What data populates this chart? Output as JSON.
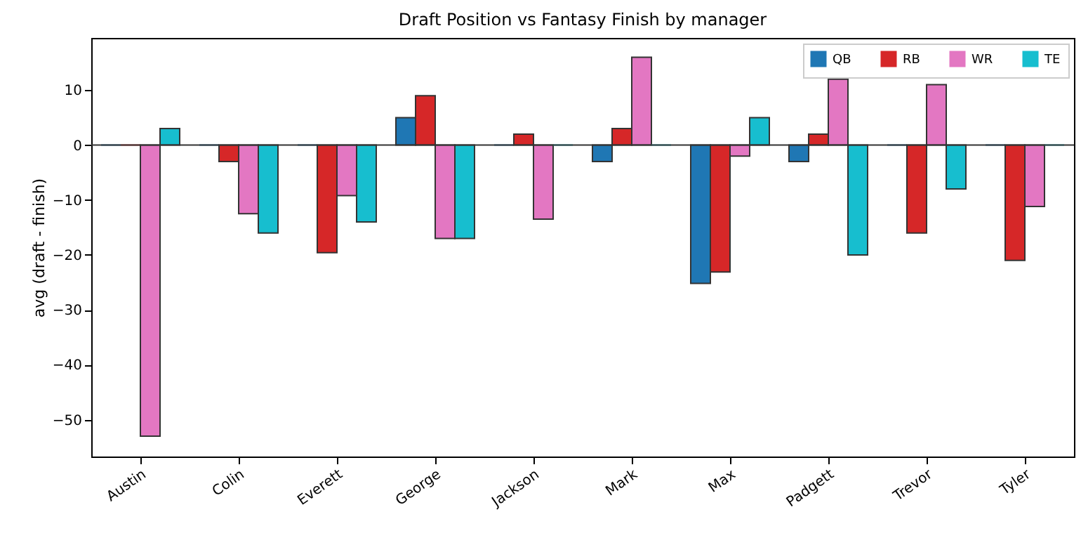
{
  "chart_data": {
    "type": "bar",
    "title": "Draft Position vs Fantasy Finish by manager",
    "ylabel": "avg (draft - finish)",
    "categories": [
      "Austin",
      "Colin",
      "Everett",
      "George",
      "Jackson",
      "Mark",
      "Max",
      "Padgett",
      "Trevor",
      "Tyler"
    ],
    "series": [
      {
        "name": "QB",
        "color": "#1f77b4",
        "values": [
          0,
          0,
          0,
          5,
          0,
          -3,
          -25.2,
          -3,
          0,
          0
        ]
      },
      {
        "name": "RB",
        "color": "#d62728",
        "values": [
          0,
          -3,
          -19.6,
          9,
          2,
          3,
          -23.1,
          2,
          -16,
          -21
        ]
      },
      {
        "name": "WR",
        "color": "#e377c2",
        "values": [
          -53,
          -12.5,
          -9.2,
          -17,
          -13.5,
          16,
          -2,
          12,
          11,
          -11.2
        ]
      },
      {
        "name": "TE",
        "color": "#17becf",
        "values": [
          3,
          -16,
          -14,
          -17,
          0,
          0,
          5,
          -20,
          -8,
          0
        ]
      }
    ],
    "ylim": [
      -56.7,
      19.5
    ],
    "yticks": [
      -50,
      -40,
      -30,
      -20,
      -10,
      0,
      10
    ],
    "ref_lines": [
      {
        "axis": "y",
        "value": 0,
        "color": "#333333"
      }
    ],
    "legend": "top right",
    "grid": false
  }
}
